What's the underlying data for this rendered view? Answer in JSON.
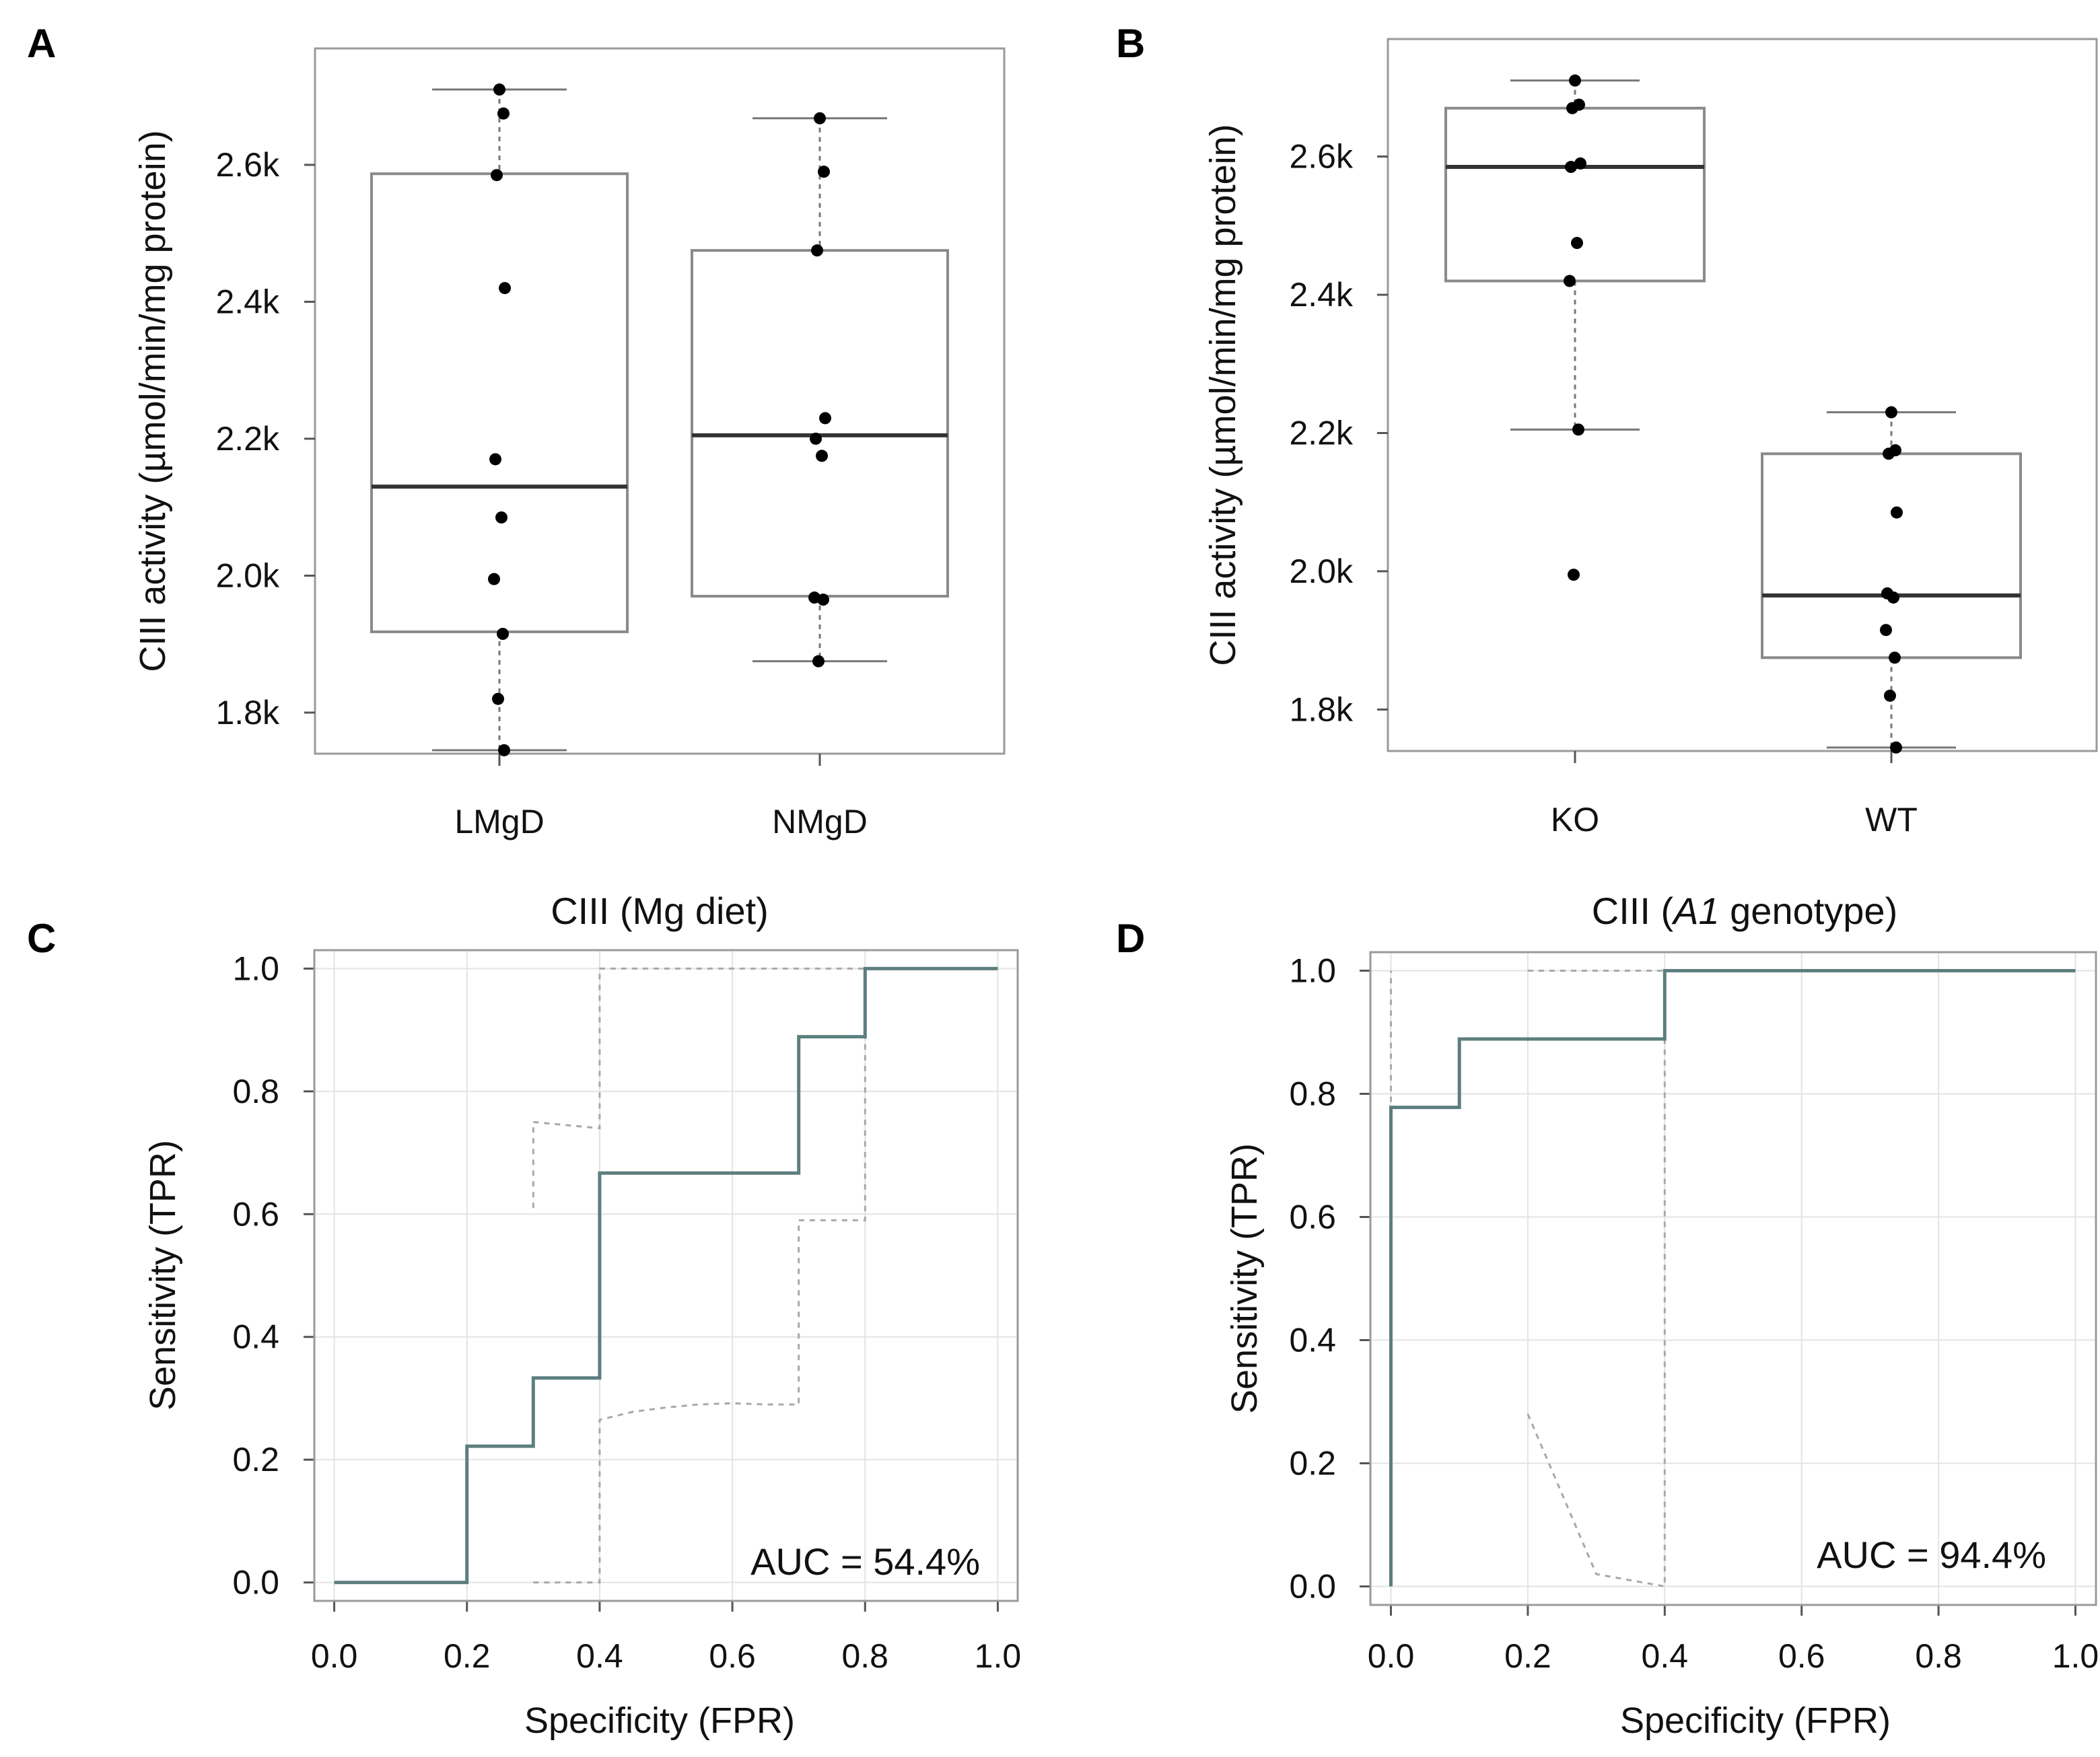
{
  "chart_data": [
    {
      "panel": "A",
      "type": "box",
      "title": "",
      "xlabel": "",
      "ylabel": "CIII activity (µmol/min/mg protein)",
      "ylim": [
        1740,
        2770
      ],
      "yticks": [
        1800,
        2000,
        2200,
        2400,
        2600
      ],
      "ytick_labels": [
        "1.8k",
        "2.0k",
        "2.2k",
        "2.4k",
        "2.6k"
      ],
      "categories": [
        "LMgD",
        "NMgD"
      ],
      "boxes": [
        {
          "name": "LMgD",
          "q1": 1918,
          "median": 2130,
          "q3": 2587,
          "whisker_low": 1745,
          "whisker_high": 2710,
          "points": [
            2710,
            2675,
            2585,
            2420,
            2170,
            2085,
            1995,
            1915,
            1820,
            1745
          ]
        },
        {
          "name": "NMgD",
          "q1": 1970,
          "median": 2205,
          "q3": 2475,
          "whisker_low": 1875,
          "whisker_high": 2668,
          "points": [
            2668,
            2590,
            2475,
            2230,
            2200,
            2175,
            1968,
            1965,
            1875
          ]
        }
      ]
    },
    {
      "panel": "B",
      "type": "box",
      "title": "",
      "xlabel": "",
      "ylabel": "CIII activity (µmol/min/mg protein)",
      "ylim": [
        1740,
        2770
      ],
      "yticks": [
        1800,
        2000,
        2200,
        2400,
        2600
      ],
      "ytick_labels": [
        "1.8k",
        "2.0k",
        "2.2k",
        "2.4k",
        "2.6k"
      ],
      "categories": [
        "KO",
        "WT"
      ],
      "boxes": [
        {
          "name": "KO",
          "q1": 2420,
          "median": 2585,
          "q3": 2670,
          "whisker_low": 2205,
          "whisker_high": 2710,
          "points": [
            2710,
            2675,
            2670,
            2590,
            2585,
            2475,
            2420,
            2205,
            1995
          ]
        },
        {
          "name": "WT",
          "q1": 1875,
          "median": 1965,
          "q3": 2170,
          "whisker_low": 1745,
          "whisker_high": 2230,
          "points": [
            2230,
            2175,
            2170,
            2085,
            1968,
            1962,
            1915,
            1875,
            1820,
            1745
          ]
        }
      ]
    },
    {
      "panel": "C",
      "type": "line",
      "title": "CIII (Mg diet)",
      "xlabel": "Specificity (FPR)",
      "ylabel": "Sensitivity (TPR)",
      "xlim": [
        -0.03,
        1.03
      ],
      "ylim": [
        -0.03,
        1.03
      ],
      "xticks": [
        0.0,
        0.2,
        0.4,
        0.6,
        0.8,
        1.0
      ],
      "xtick_labels": [
        "0.0",
        "0.2",
        "0.4",
        "0.6",
        "0.8",
        "1.0"
      ],
      "yticks": [
        0.0,
        0.2,
        0.4,
        0.6,
        0.8,
        1.0
      ],
      "ytick_labels": [
        "0.0",
        "0.2",
        "0.4",
        "0.6",
        "0.8",
        "1.0"
      ],
      "auc_label": "AUC = 54.4%",
      "series": [
        {
          "name": "ROC",
          "x": [
            0.0,
            0.2,
            0.2,
            0.3,
            0.3,
            0.4,
            0.4,
            0.7,
            0.7,
            0.8,
            0.8,
            1.0
          ],
          "y": [
            0.0,
            0.0,
            0.222,
            0.222,
            0.333,
            0.333,
            0.667,
            0.667,
            0.889,
            0.889,
            1.0,
            1.0
          ]
        },
        {
          "name": "CI upper",
          "x": [
            0.3,
            0.3,
            0.4,
            0.4,
            0.8
          ],
          "y": [
            0.61,
            0.75,
            0.74,
            1.0,
            1.0
          ]
        },
        {
          "name": "CI lower",
          "x": [
            0.3,
            0.4,
            0.4,
            0.45,
            0.5,
            0.55,
            0.6,
            0.65,
            0.7,
            0.7,
            0.8,
            0.8
          ],
          "y": [
            0.0,
            0.0,
            0.265,
            0.278,
            0.285,
            0.29,
            0.292,
            0.29,
            0.29,
            0.59,
            0.59,
            1.0
          ]
        }
      ]
    },
    {
      "panel": "D",
      "type": "line",
      "title": "CIII (A1 genotype)",
      "title_prefix": "CIII (",
      "title_italic": "A1",
      "title_suffix": " genotype)",
      "xlabel": "Specificity (FPR)",
      "ylabel": "Sensitivity (TPR)",
      "xlim": [
        -0.03,
        1.03
      ],
      "ylim": [
        -0.03,
        1.03
      ],
      "xticks": [
        0.0,
        0.2,
        0.4,
        0.6,
        0.8,
        1.0
      ],
      "xtick_labels": [
        "0.0",
        "0.2",
        "0.4",
        "0.6",
        "0.8",
        "1.0"
      ],
      "yticks": [
        0.0,
        0.2,
        0.4,
        0.6,
        0.8,
        1.0
      ],
      "ytick_labels": [
        "0.0",
        "0.2",
        "0.4",
        "0.6",
        "0.8",
        "1.0"
      ],
      "auc_label": "AUC = 94.4%",
      "series": [
        {
          "name": "ROC",
          "x": [
            0.0,
            0.0,
            0.1,
            0.1,
            0.4,
            0.4,
            1.0
          ],
          "y": [
            0.0,
            0.778,
            0.778,
            0.889,
            0.889,
            1.0,
            1.0
          ]
        },
        {
          "name": "CI upper a",
          "x": [
            0.0,
            0.0
          ],
          "y": [
            0.0,
            1.0
          ]
        },
        {
          "name": "CI upper b",
          "x": [
            0.2,
            0.4
          ],
          "y": [
            1.0,
            1.0
          ]
        },
        {
          "name": "CI lower",
          "x": [
            0.2,
            0.3,
            0.4,
            0.4
          ],
          "y": [
            0.28,
            0.02,
            0.0,
            1.0
          ]
        }
      ]
    }
  ]
}
